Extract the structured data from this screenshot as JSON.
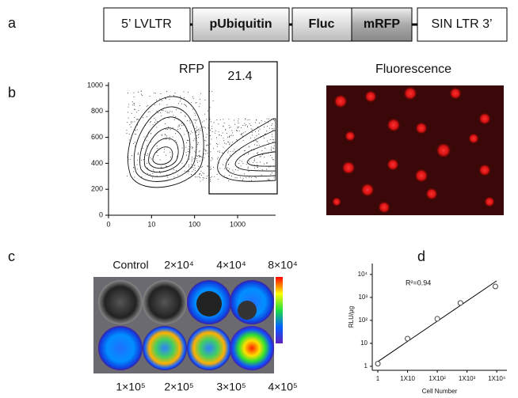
{
  "panel_labels": [
    "a",
    "b",
    "c",
    "d"
  ],
  "construct": [
    "5’ LVLTR",
    "pUbiquitin",
    "Fluc",
    "mRFP",
    "SIN LTR 3’"
  ],
  "flow": {
    "type": "contour",
    "title": "RFP",
    "ylim": [
      0,
      1000
    ],
    "yticks": [
      0,
      200,
      400,
      600,
      800,
      1000
    ],
    "xticks": [
      0,
      10,
      100,
      1000
    ],
    "gate_label": "21.4"
  },
  "image": {
    "title": "Fluorescence"
  },
  "wells": {
    "labels": [
      "Control",
      "2×10⁴",
      "4×10⁴",
      "8×10⁴",
      "1×10⁵",
      "2×10⁵",
      "3×10⁵",
      "4×10⁵"
    ]
  },
  "chart_data": {
    "type": "scatter",
    "log_x": true,
    "log_y": true,
    "x": [
      1,
      10,
      100,
      600,
      9000
    ],
    "values": [
      1.3,
      16,
      117,
      575,
      3000
    ],
    "fit": {
      "x": [
        1,
        10000
      ],
      "values": [
        1.6,
        5300
      ]
    },
    "xlim": [
      0.65,
      22000
    ],
    "ylim": [
      0.67,
      30000
    ],
    "xticks": [
      1,
      {
        "value": 10,
        "label": "1X10"
      },
      {
        "value": 100,
        "label": "1X10²"
      },
      {
        "value": 1000,
        "label": "1X10³"
      },
      {
        "value": 10000,
        "label": "1X10⁴"
      }
    ],
    "yticks": [
      1,
      10,
      {
        "value": 100,
        "label": "10²"
      },
      {
        "value": 1000,
        "label": "10³"
      },
      {
        "value": 10000,
        "label": "10⁴"
      }
    ],
    "xlabel": "Cell Number",
    "ylabel": "RLU/μg",
    "annotation": "R²=0.94"
  }
}
